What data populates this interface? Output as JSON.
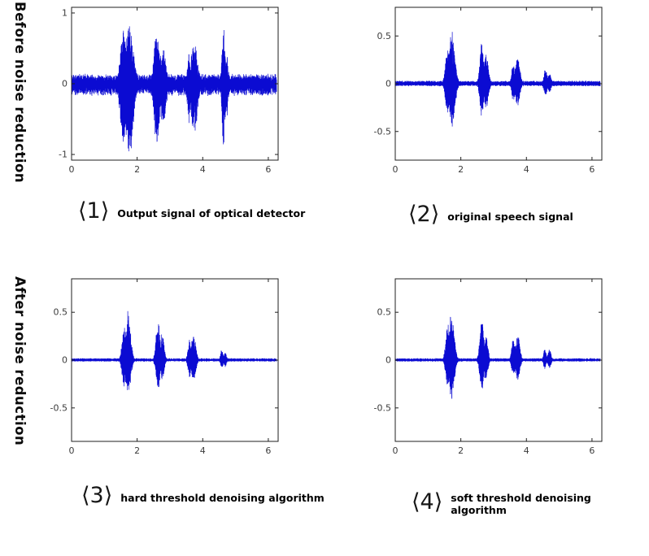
{
  "figure": {
    "background": "#ffffff"
  },
  "waveform_color": "#0b0bd2",
  "axis_color": "#1f1f1f",
  "tick_label_color": "#3c3c3c",
  "rows": [
    {
      "label": "Before noise reduction"
    },
    {
      "label": "After noise reduction"
    }
  ],
  "chart_data": [
    {
      "type": "line",
      "id": "optical-detector-output",
      "caption_number": "⟨1⟩",
      "caption": "Output signal of optical detector",
      "title": "",
      "xlabel": "",
      "ylabel": "",
      "xlim": [
        0,
        6.3
      ],
      "xticks": [
        0,
        2,
        4,
        6
      ],
      "xtick_labels": [
        "0",
        "2",
        "4",
        "6"
      ],
      "ylim": [
        -1.08,
        1.08
      ],
      "yticks": [
        1,
        0,
        -1
      ],
      "ytick_labels": [
        "1",
        "0",
        "-1"
      ],
      "grid": false,
      "signal_end": 6.25,
      "noise_floor": 0.13,
      "pos_scale": 0.85,
      "neg_scale": 1.03,
      "bursts": [
        {
          "x": 1.58,
          "w": 0.09,
          "a": 0.95
        },
        {
          "x": 1.76,
          "w": 0.12,
          "a": 1.05
        },
        {
          "x": 2.6,
          "w": 0.08,
          "a": 0.95
        },
        {
          "x": 2.78,
          "w": 0.1,
          "a": 0.62
        },
        {
          "x": 3.58,
          "w": 0.05,
          "a": 0.55
        },
        {
          "x": 3.74,
          "w": 0.1,
          "a": 0.72
        },
        {
          "x": 4.64,
          "w": 0.05,
          "a": 0.95
        },
        {
          "x": 4.74,
          "w": 0.04,
          "a": 0.5
        }
      ],
      "seed": 9
    },
    {
      "type": "line",
      "id": "original-speech-signal",
      "caption_number": "⟨2⟩",
      "caption": "original speech signal",
      "title": "",
      "xlabel": "",
      "ylabel": "",
      "xlim": [
        0,
        6.3
      ],
      "xticks": [
        0,
        2,
        4,
        6
      ],
      "xtick_labels": [
        "0",
        "2",
        "4",
        "6"
      ],
      "ylim": [
        -0.8,
        0.8
      ],
      "yticks": [
        0.5,
        0,
        -0.5
      ],
      "ytick_labels": [
        "0.5",
        "0",
        "-0.5"
      ],
      "grid": false,
      "signal_end": 6.25,
      "noise_floor": 0.025,
      "pos_scale": 1.0,
      "neg_scale": 0.82,
      "bursts": [
        {
          "x": 1.6,
          "w": 0.07,
          "a": 0.4
        },
        {
          "x": 1.73,
          "w": 0.09,
          "a": 0.56
        },
        {
          "x": 2.64,
          "w": 0.06,
          "a": 0.45
        },
        {
          "x": 2.77,
          "w": 0.07,
          "a": 0.34
        },
        {
          "x": 3.6,
          "w": 0.05,
          "a": 0.24
        },
        {
          "x": 3.73,
          "w": 0.07,
          "a": 0.3
        },
        {
          "x": 4.58,
          "w": 0.05,
          "a": 0.17
        },
        {
          "x": 4.7,
          "w": 0.05,
          "a": 0.13
        }
      ],
      "seed": 57
    },
    {
      "type": "line",
      "id": "hard-threshold-denoised",
      "caption_number": "⟨3⟩",
      "caption": "hard threshold denoising algorithm",
      "title": "",
      "xlabel": "",
      "ylabel": "",
      "xlim": [
        0,
        6.3
      ],
      "xticks": [
        0,
        2,
        4,
        6
      ],
      "xtick_labels": [
        "0",
        "2",
        "4",
        "6"
      ],
      "ylim": [
        -0.85,
        0.85
      ],
      "yticks": [
        0.5,
        0,
        -0.5
      ],
      "ytick_labels": [
        "0.5",
        "0",
        "-0.5"
      ],
      "grid": false,
      "signal_end": 6.25,
      "noise_floor": 0.016,
      "pos_scale": 1.0,
      "neg_scale": 0.78,
      "bursts": [
        {
          "x": 1.6,
          "w": 0.06,
          "a": 0.38
        },
        {
          "x": 1.72,
          "w": 0.08,
          "a": 0.52
        },
        {
          "x": 2.64,
          "w": 0.06,
          "a": 0.47
        },
        {
          "x": 2.76,
          "w": 0.06,
          "a": 0.3
        },
        {
          "x": 3.6,
          "w": 0.05,
          "a": 0.24
        },
        {
          "x": 3.72,
          "w": 0.07,
          "a": 0.28
        },
        {
          "x": 4.58,
          "w": 0.04,
          "a": 0.12
        },
        {
          "x": 4.68,
          "w": 0.04,
          "a": 0.1
        }
      ],
      "seed": 123
    },
    {
      "type": "line",
      "id": "soft-threshold-denoised",
      "caption_number": "⟨4⟩",
      "caption": "soft threshold denoising algorithm",
      "title": "",
      "xlabel": "",
      "ylabel": "",
      "xlim": [
        0,
        6.3
      ],
      "xticks": [
        0,
        2,
        4,
        6
      ],
      "xtick_labels": [
        "0",
        "2",
        "4",
        "6"
      ],
      "ylim": [
        -0.85,
        0.85
      ],
      "yticks": [
        0.5,
        0,
        -0.5
      ],
      "ytick_labels": [
        "0.5",
        "0",
        "-0.5"
      ],
      "grid": false,
      "signal_end": 6.25,
      "noise_floor": 0.016,
      "pos_scale": 1.0,
      "neg_scale": 0.78,
      "bursts": [
        {
          "x": 1.6,
          "w": 0.06,
          "a": 0.4
        },
        {
          "x": 1.72,
          "w": 0.08,
          "a": 0.53
        },
        {
          "x": 2.64,
          "w": 0.06,
          "a": 0.44
        },
        {
          "x": 2.76,
          "w": 0.06,
          "a": 0.3
        },
        {
          "x": 3.6,
          "w": 0.05,
          "a": 0.25
        },
        {
          "x": 3.73,
          "w": 0.07,
          "a": 0.28
        },
        {
          "x": 4.56,
          "w": 0.04,
          "a": 0.13
        },
        {
          "x": 4.7,
          "w": 0.05,
          "a": 0.12
        }
      ],
      "seed": 201
    }
  ]
}
